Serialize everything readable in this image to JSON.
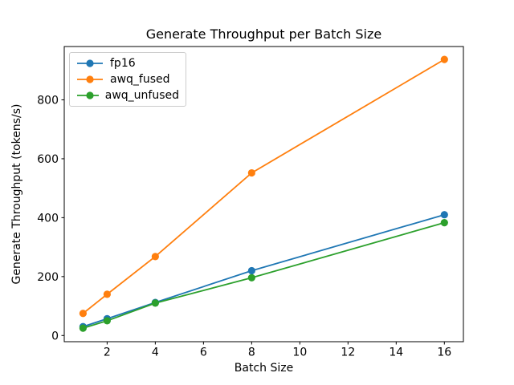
{
  "figure": {
    "background": "#ffffff",
    "text_color": "#000000"
  },
  "chart_data": {
    "type": "line",
    "title": "Generate Throughput per Batch Size",
    "xlabel": "Batch Size",
    "ylabel": "Generate Throughput (tokens/s)",
    "x": [
      1,
      2,
      4,
      8,
      16
    ],
    "series": [
      {
        "name": "fp16",
        "color": "#1f77b4",
        "values": [
          30,
          57,
          112,
          220,
          410
        ]
      },
      {
        "name": "awq_fused",
        "color": "#ff7f0e",
        "values": [
          75,
          140,
          268,
          552,
          937
        ]
      },
      {
        "name": "awq_unfused",
        "color": "#2ca02c",
        "values": [
          25,
          50,
          110,
          196,
          383
        ]
      }
    ],
    "xticks": [
      2,
      4,
      6,
      8,
      10,
      12,
      14,
      16
    ],
    "yticks": [
      0,
      200,
      400,
      600,
      800
    ],
    "xlim": [
      0.22,
      16.79
    ],
    "ylim": [
      -21,
      981
    ],
    "grid": false,
    "marker": "circle",
    "legend_position": "upper left"
  }
}
